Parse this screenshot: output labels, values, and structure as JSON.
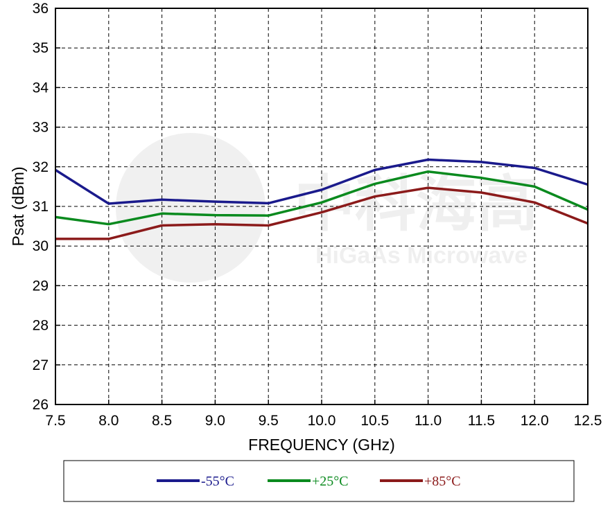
{
  "watermark": {
    "text_cn": "中科海高",
    "text_en": "HiGaAs Microwave"
  },
  "chart_data": {
    "type": "line",
    "xlabel": "FREQUENCY (GHz)",
    "ylabel": "Psat (dBm)",
    "xlim": [
      7.5,
      12.5
    ],
    "ylim": [
      26,
      36
    ],
    "x_ticks": [
      "7.5",
      "8.0",
      "8.5",
      "9.0",
      "9.5",
      "10.0",
      "10.5",
      "11.0",
      "11.5",
      "12.0",
      "12.5"
    ],
    "y_ticks": [
      "26",
      "27",
      "28",
      "29",
      "30",
      "31",
      "32",
      "33",
      "34",
      "35",
      "36"
    ],
    "grid": true,
    "legend_position": "bottom",
    "x": [
      7.5,
      8.0,
      8.5,
      9.0,
      9.5,
      10.0,
      10.5,
      11.0,
      11.5,
      12.0,
      12.5
    ],
    "series": [
      {
        "name": "-55°C",
        "color": "#1a1a8c",
        "values": [
          31.92,
          31.07,
          31.17,
          31.12,
          31.08,
          31.42,
          31.92,
          32.18,
          32.12,
          31.97,
          31.55
        ]
      },
      {
        "name": "+25°C",
        "color": "#0a8a1e",
        "values": [
          30.73,
          30.55,
          30.82,
          30.78,
          30.77,
          31.1,
          31.57,
          31.88,
          31.72,
          31.5,
          30.92
        ]
      },
      {
        "name": "+85°C",
        "color": "#8b1a1a",
        "values": [
          30.18,
          30.18,
          30.52,
          30.55,
          30.52,
          30.85,
          31.25,
          31.47,
          31.35,
          31.1,
          30.57
        ]
      }
    ]
  }
}
